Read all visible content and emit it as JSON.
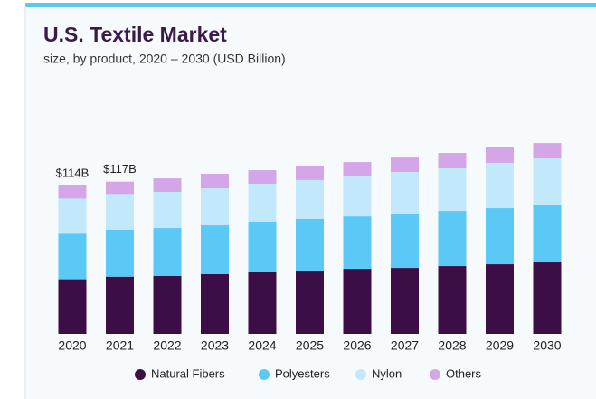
{
  "chart_data": {
    "type": "stacked_bar",
    "title": "U.S. Textile Market",
    "subtitle": "size, by product, 2020 – 2030 (USD Billion)",
    "categories": [
      "2020",
      "2021",
      "2022",
      "2023",
      "2024",
      "2025",
      "2026",
      "2027",
      "2028",
      "2029",
      "2030"
    ],
    "series": [
      {
        "name": "Natural Fibers",
        "color": "#3b0f45",
        "values": [
          42,
          44,
          44.5,
          45.9,
          47.3,
          48.7,
          50,
          50.7,
          52.1,
          53.5,
          54.9
        ]
      },
      {
        "name": "Polyesters",
        "color": "#5bc8f5",
        "values": [
          35,
          36,
          36.8,
          37.5,
          38.9,
          39.6,
          40.3,
          41.7,
          42.4,
          43.1,
          43.8
        ]
      },
      {
        "name": "Nylon",
        "color": "#c1e8fb",
        "values": [
          27,
          27.5,
          27.8,
          28.5,
          29.2,
          29.9,
          30.6,
          32,
          32.7,
          34.8,
          36.1
        ]
      },
      {
        "name": "Others",
        "color": "#d4a6e8",
        "values": [
          10,
          9.5,
          10.4,
          11.1,
          10.4,
          11.1,
          11.1,
          11.1,
          11.8,
          11.8,
          11.8
        ]
      }
    ],
    "annotations": [
      {
        "text": "$114B",
        "value": 114,
        "category_index": 0
      },
      {
        "text": "$117B",
        "value": 117,
        "category_index": 1
      }
    ]
  }
}
